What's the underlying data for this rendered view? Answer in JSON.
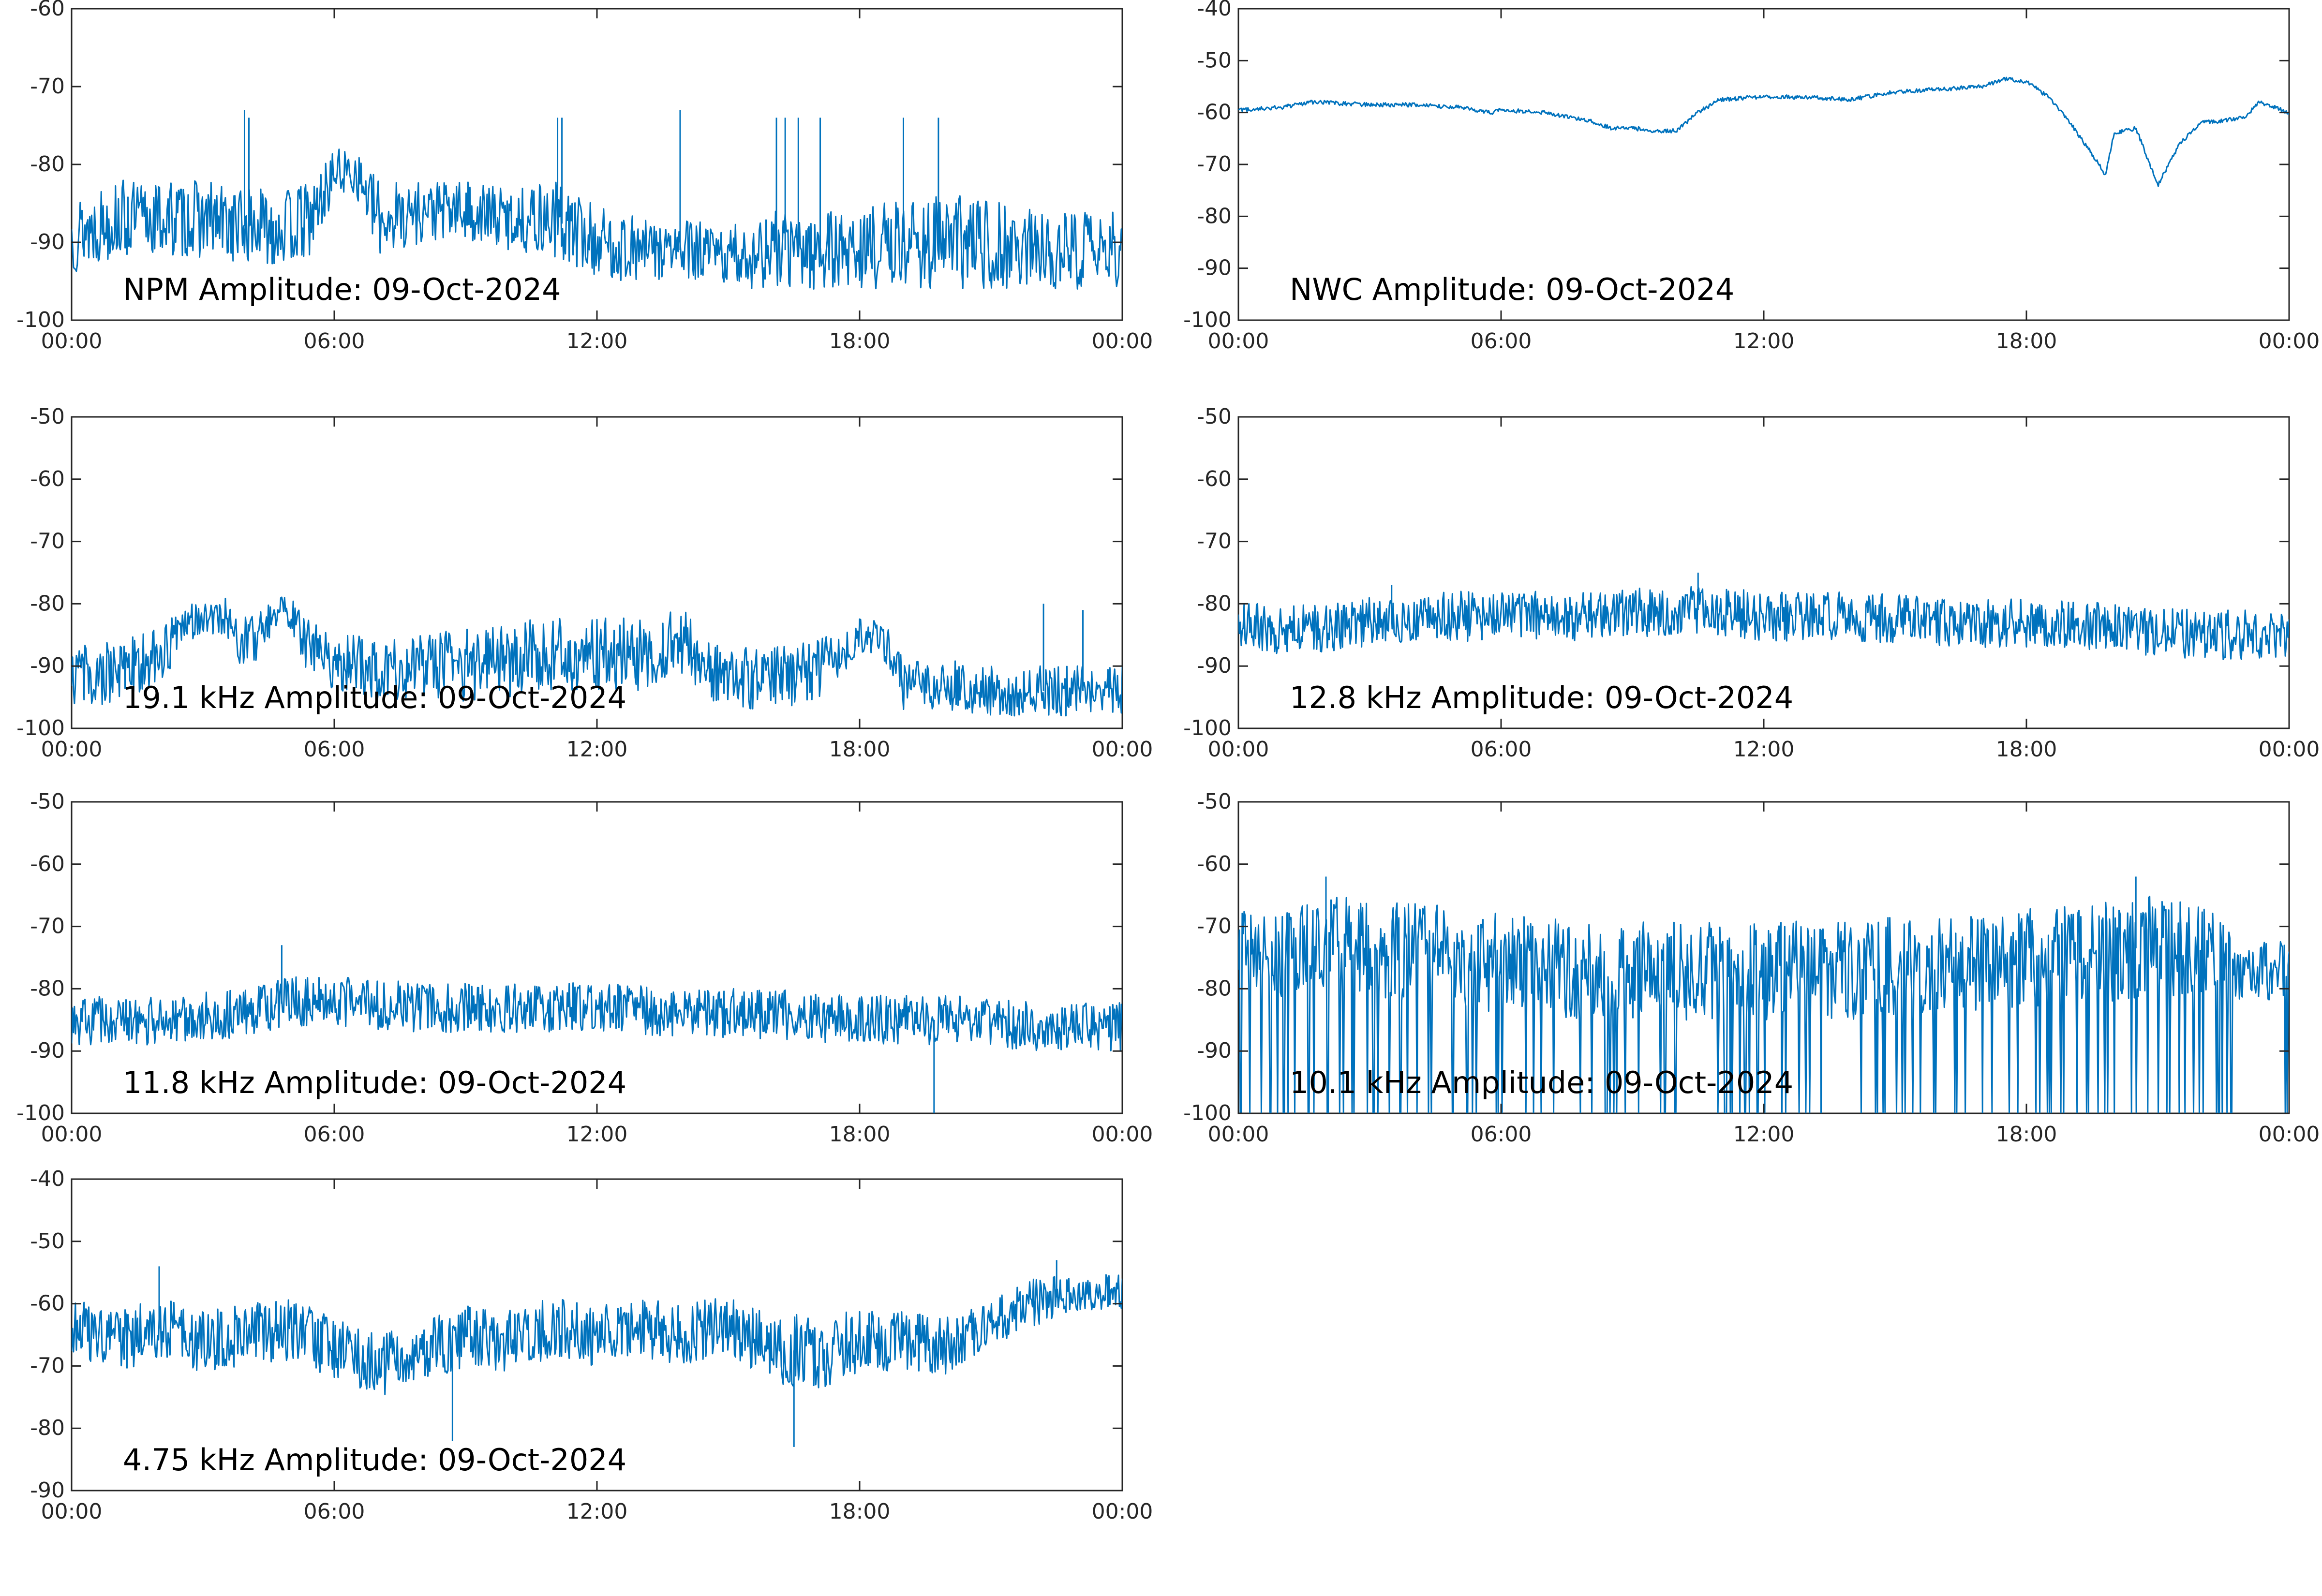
{
  "figure": {
    "line_color": "#0072bd",
    "axis_color": "#262626",
    "background": "#ffffff"
  },
  "chart_data": [
    {
      "type": "line",
      "label": "NPM Amplitude: 09-Oct-2024",
      "xticks": [
        "00:00",
        "06:00",
        "12:00",
        "18:00",
        "00:00"
      ],
      "xlim_hours": [
        0,
        24
      ],
      "ylim": [
        -100,
        -60
      ],
      "yticks": [
        -60,
        -70,
        -80,
        -90,
        -100
      ],
      "grid": false,
      "series": [
        {
          "x": [
            0,
            1,
            2,
            3,
            4,
            5,
            5.5,
            6,
            6.5,
            7,
            8,
            9,
            10,
            11,
            12,
            13,
            14,
            15,
            16,
            17,
            18,
            19,
            20,
            21,
            22,
            23,
            24
          ],
          "y": [
            -89,
            -87,
            -87,
            -87,
            -88,
            -88,
            -87,
            -81,
            -81,
            -87,
            -86,
            -86,
            -87,
            -87,
            -90,
            -91,
            -91,
            -92,
            -91,
            -91,
            -91,
            -90,
            -90,
            -90,
            -91,
            -91,
            -91
          ],
          "spread": [
            5,
            5,
            5,
            5,
            5,
            5,
            5,
            3,
            3,
            5,
            4,
            4,
            4,
            5,
            5,
            4,
            4,
            4,
            5,
            5,
            5,
            6,
            6,
            6,
            5,
            5,
            5
          ],
          "spikes": [
            [
              3.95,
              -73
            ],
            [
              4.05,
              -74
            ],
            [
              11.1,
              -74
            ],
            [
              11.2,
              -74
            ],
            [
              13.9,
              -73
            ],
            [
              16.1,
              -74
            ],
            [
              16.3,
              -74
            ],
            [
              16.6,
              -74
            ],
            [
              17.1,
              -74
            ],
            [
              19.0,
              -74
            ],
            [
              19.8,
              -74
            ]
          ]
        }
      ]
    },
    {
      "type": "line",
      "label": "NWC Amplitude: 09-Oct-2024",
      "xticks": [
        "00:00",
        "06:00",
        "12:00",
        "18:00",
        "00:00"
      ],
      "xlim_hours": [
        0,
        24
      ],
      "ylim": [
        -100,
        -40
      ],
      "yticks": [
        -40,
        -50,
        -60,
        -70,
        -80,
        -90,
        -100
      ],
      "grid": false,
      "series": [
        {
          "x": [
            0,
            1,
            1.7,
            3,
            4,
            5,
            5.8,
            6,
            7,
            8,
            8.5,
            9,
            9.5,
            10,
            10.5,
            11,
            12,
            13,
            14,
            15,
            16,
            17,
            17.5,
            18,
            18.5,
            19,
            19.5,
            19.8,
            20,
            20.5,
            21,
            21.5,
            22,
            23,
            23.3,
            24
          ],
          "y": [
            -59.5,
            -59,
            -58,
            -58.5,
            -58.5,
            -59,
            -60,
            -59.5,
            -60,
            -61.5,
            -63,
            -63,
            -63.5,
            -63.5,
            -60,
            -57.5,
            -57,
            -57,
            -57.5,
            -56,
            -55.5,
            -55,
            -53.5,
            -54,
            -57,
            -62,
            -68,
            -72,
            -64,
            -63,
            -74,
            -66,
            -62,
            -61,
            -58,
            -60
          ],
          "spread": [
            0.4,
            0.4,
            0.4,
            0.4,
            0.4,
            0.4,
            0.4,
            0.4,
            0.4,
            0.4,
            0.4,
            0.4,
            0.4,
            0.4,
            0.4,
            0.4,
            0.4,
            0.4,
            0.4,
            0.4,
            0.4,
            0.4,
            0.4,
            0.4,
            0.4,
            0.4,
            0.4,
            0.4,
            0.4,
            0.4,
            0.4,
            0.4,
            0.4,
            0.4,
            0.4,
            0.4
          ],
          "spikes": []
        }
      ]
    },
    {
      "type": "line",
      "label": "19.1 kHz Amplitude: 09-Oct-2024",
      "xticks": [
        "00:00",
        "06:00",
        "12:00",
        "18:00",
        "00:00"
      ],
      "xlim_hours": [
        0,
        24
      ],
      "ylim": [
        -100,
        -50
      ],
      "yticks": [
        -50,
        -60,
        -70,
        -80,
        -90,
        -100
      ],
      "grid": false,
      "series": [
        {
          "x": [
            0,
            1,
            2,
            2.5,
            3,
            3.5,
            4,
            4.5,
            5,
            5.5,
            6,
            7,
            8,
            9,
            10,
            11,
            12,
            13,
            14,
            14.5,
            15,
            16,
            17,
            18,
            18.5,
            19,
            20,
            21,
            22,
            23,
            24
          ],
          "y": [
            -92,
            -91,
            -89,
            -84,
            -82,
            -82,
            -87,
            -83,
            -81,
            -88,
            -89,
            -91,
            -90,
            -90,
            -89,
            -88,
            -88,
            -88,
            -86,
            -91,
            -92,
            -92,
            -91,
            -85,
            -85,
            -93,
            -93,
            -94,
            -94,
            -94,
            -94
          ],
          "spread": [
            5,
            5,
            5,
            3,
            3,
            3,
            5,
            3,
            3,
            5,
            5,
            5,
            5,
            6,
            6,
            6,
            6,
            6,
            5,
            5,
            5,
            5,
            5,
            3,
            3,
            4,
            4,
            4,
            4,
            4,
            4
          ],
          "spikes": [
            [
              22.2,
              -80
            ],
            [
              23.1,
              -81
            ]
          ]
        }
      ]
    },
    {
      "type": "line",
      "label": "12.8 kHz Amplitude: 09-Oct-2024",
      "xticks": [
        "00:00",
        "06:00",
        "12:00",
        "18:00",
        "00:00"
      ],
      "xlim_hours": [
        0,
        24
      ],
      "ylim": [
        -100,
        -50
      ],
      "yticks": [
        -50,
        -60,
        -70,
        -80,
        -90,
        -100
      ],
      "grid": false,
      "series": [
        {
          "x": [
            0,
            2,
            4,
            6,
            8,
            10,
            11,
            12,
            14,
            16,
            18,
            20,
            22,
            24
          ],
          "y": [
            -84,
            -84,
            -82,
            -82,
            -82,
            -81,
            -81,
            -82,
            -82,
            -83,
            -83,
            -84,
            -85,
            -85
          ],
          "spread": [
            4,
            4,
            4,
            4,
            4,
            4,
            4,
            4,
            4,
            4,
            4,
            4,
            4,
            4
          ],
          "spikes": [
            [
              10.5,
              -75
            ],
            [
              3.5,
              -77
            ]
          ]
        }
      ]
    },
    {
      "type": "line",
      "label": "11.8 kHz Amplitude: 09-Oct-2024",
      "xticks": [
        "00:00",
        "06:00",
        "12:00",
        "18:00",
        "00:00"
      ],
      "xlim_hours": [
        0,
        24
      ],
      "ylim": [
        -100,
        -50
      ],
      "yticks": [
        -50,
        -60,
        -70,
        -80,
        -90,
        -100
      ],
      "grid": false,
      "series": [
        {
          "x": [
            0,
            2,
            4,
            5,
            6,
            8,
            10,
            12,
            14,
            16,
            18,
            20,
            22,
            24
          ],
          "y": [
            -85,
            -85,
            -84,
            -82,
            -82,
            -83,
            -83,
            -83,
            -84,
            -84,
            -85,
            -85,
            -86,
            -86
          ],
          "spread": [
            4,
            4,
            4,
            4,
            4,
            4,
            4,
            4,
            4,
            4,
            4,
            4,
            4,
            4
          ],
          "spikes": [
            [
              4.8,
              -73
            ],
            [
              19.7,
              -100
            ]
          ]
        }
      ]
    },
    {
      "type": "line",
      "label": "10.1 kHz Amplitude: 09-Oct-2024",
      "xticks": [
        "00:00",
        "06:00",
        "12:00",
        "18:00",
        "00:00"
      ],
      "xlim_hours": [
        0,
        24
      ],
      "ylim": [
        -100,
        -50
      ],
      "yticks": [
        -50,
        -60,
        -70,
        -80,
        -90,
        -100
      ],
      "grid": false,
      "series": [
        {
          "x": [
            0,
            2,
            4,
            6,
            8,
            10,
            12,
            14,
            16,
            18,
            20,
            21,
            22,
            23,
            24
          ],
          "y": [
            -74,
            -73,
            -74,
            -76,
            -77,
            -77,
            -77,
            -77,
            -76,
            -75,
            -74,
            -73,
            -74,
            -78,
            -77
          ],
          "spread": [
            8,
            8,
            8,
            8,
            8,
            8,
            8,
            8,
            8,
            8,
            8,
            8,
            8,
            5,
            5
          ],
          "spikes": [
            [
              2,
              -62
            ],
            [
              20.5,
              -62
            ]
          ],
          "dropouts": "frequent drops to -100"
        }
      ]
    },
    {
      "type": "line",
      "label": "4.75 kHz Amplitude: 09-Oct-2024",
      "xticks": [
        "00:00",
        "06:00",
        "12:00",
        "18:00",
        "00:00"
      ],
      "xlim_hours": [
        0,
        24
      ],
      "ylim": [
        -90,
        -40
      ],
      "yticks": [
        -40,
        -50,
        -60,
        -70,
        -80,
        -90
      ],
      "grid": false,
      "series": [
        {
          "x": [
            0,
            1,
            2,
            3,
            4,
            5,
            6,
            7,
            8,
            9,
            10,
            11,
            12,
            13,
            14,
            15,
            16,
            17,
            18,
            19,
            20,
            21,
            22,
            23,
            24
          ],
          "y": [
            -63,
            -66,
            -64,
            -66,
            -65,
            -64,
            -67,
            -70,
            -68,
            -65,
            -66,
            -64,
            -65,
            -64,
            -65,
            -63,
            -67,
            -68,
            -66,
            -66,
            -67,
            -63,
            -60,
            -58,
            -58
          ],
          "spread": [
            5,
            5,
            5,
            5,
            5,
            5,
            5,
            5,
            5,
            5,
            5,
            5,
            5,
            5,
            5,
            5,
            6,
            6,
            5,
            5,
            5,
            4,
            4,
            3,
            3
          ],
          "spikes": [
            [
              8.7,
              -82
            ],
            [
              16.5,
              -83
            ],
            [
              2,
              -54
            ],
            [
              22.5,
              -53
            ]
          ]
        }
      ]
    }
  ]
}
